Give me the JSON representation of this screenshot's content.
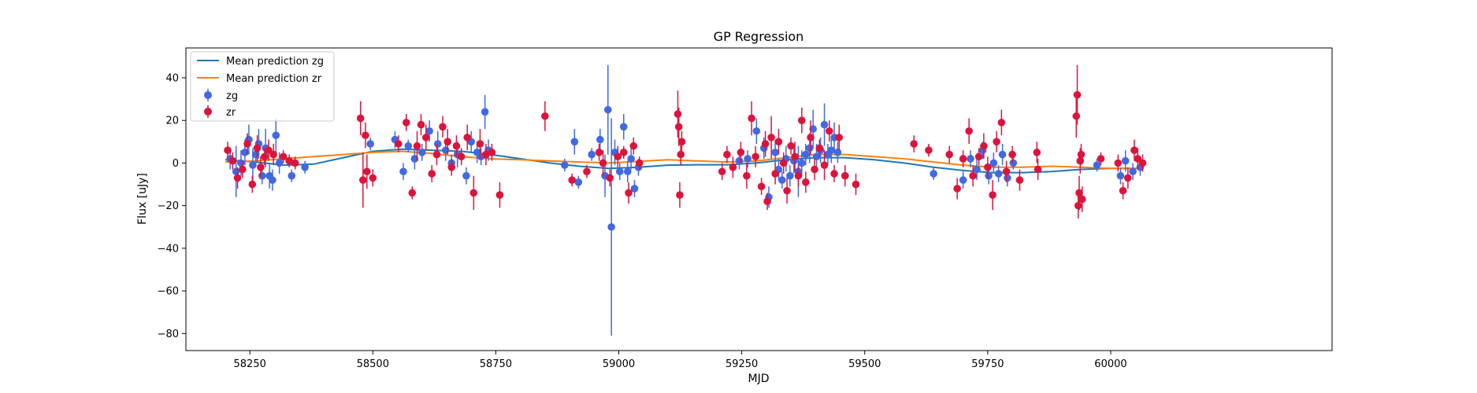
{
  "chart_data": {
    "type": "scatter",
    "title": "GP Regression",
    "xlabel": "MJD",
    "ylabel": "Flux [uJy]",
    "xlim": [
      58120,
      60450
    ],
    "ylim": [
      -88,
      54
    ],
    "xticks": [
      58250,
      58500,
      58750,
      59000,
      59250,
      59500,
      59750,
      60000
    ],
    "yticks": [
      -80,
      -60,
      -40,
      -20,
      0,
      20,
      40
    ],
    "grid": false,
    "legend_position": "top-left",
    "legend": [
      "Mean prediction zg",
      "Mean prediction zr",
      "zg",
      "zr"
    ],
    "colors": {
      "zg_line": "#1f77b4",
      "zr_line": "#ff7f0e",
      "zg_points": "#4169e1",
      "zr_points": "#dc143c"
    },
    "series": [
      {
        "name": "Mean prediction zg",
        "kind": "line",
        "x": [
          58200,
          58260,
          58320,
          58380,
          58440,
          58500,
          58560,
          58620,
          58680,
          58740,
          58800,
          58860,
          58920,
          58980,
          59040,
          59100,
          59160,
          59220,
          59280,
          59340,
          59400,
          59460,
          59520,
          59580,
          59640,
          59700,
          59760,
          59820,
          59880,
          59940,
          60000,
          60060
        ],
        "y": [
          1.5,
          0.5,
          -1.0,
          -0.5,
          2.5,
          5.5,
          6.5,
          6.0,
          5.5,
          4.0,
          2.0,
          0.0,
          -1.5,
          -2.5,
          -2.0,
          -1.0,
          -0.8,
          -0.8,
          0.0,
          1.5,
          2.5,
          2.5,
          1.5,
          0.0,
          -2.0,
          -3.5,
          -4.5,
          -4.5,
          -4.0,
          -3.0,
          -2.5,
          -2.5
        ]
      },
      {
        "name": "Mean prediction zr",
        "kind": "line",
        "x": [
          58200,
          58260,
          58320,
          58380,
          58440,
          58500,
          58560,
          58620,
          58680,
          58740,
          58800,
          58860,
          58920,
          58980,
          59040,
          59100,
          59160,
          59220,
          59280,
          59340,
          59400,
          59460,
          59520,
          59580,
          59640,
          59700,
          59760,
          59820,
          59880,
          59940,
          60000,
          60060
        ],
        "y": [
          0.5,
          1.0,
          2.0,
          3.0,
          4.0,
          5.0,
          5.5,
          4.5,
          3.0,
          2.0,
          1.5,
          1.0,
          0.5,
          0.0,
          0.8,
          1.5,
          1.0,
          0.5,
          1.0,
          2.5,
          4.0,
          4.0,
          3.0,
          2.0,
          0.5,
          -1.0,
          -2.0,
          -2.0,
          -1.5,
          -2.0,
          -2.5,
          -2.5
        ]
      },
      {
        "name": "zg",
        "kind": "errorbar",
        "x": [
          58210,
          58222,
          58232,
          58240,
          58248,
          58256,
          58262,
          58268,
          58275,
          58282,
          58290,
          58296,
          58303,
          58310,
          58335,
          58362,
          58495,
          58545,
          58562,
          58572,
          58585,
          58600,
          58615,
          58632,
          58648,
          58660,
          58672,
          58690,
          58700,
          58712,
          58720,
          58728,
          58735,
          58890,
          58910,
          58918,
          58945,
          58962,
          58972,
          58978,
          58985,
          58992,
          59002,
          59010,
          59018,
          59025,
          59032,
          59040,
          59245,
          59262,
          59280,
          59295,
          59305,
          59318,
          59325,
          59332,
          59340,
          59348,
          59356,
          59365,
          59372,
          59380,
          59388,
          59395,
          59402,
          59410,
          59418,
          59425,
          59432,
          59438,
          59445,
          59640,
          59700,
          59715,
          59728,
          59740,
          59752,
          59762,
          59772,
          59780,
          59790,
          59802,
          59972,
          60020,
          60030,
          60045,
          60060
        ],
        "y": [
          2,
          -4,
          0,
          5,
          11,
          -1,
          4,
          9,
          -6,
          7,
          -6,
          -8,
          13,
          0,
          -6,
          -2,
          9,
          11,
          -4,
          8,
          2,
          5,
          15,
          9,
          6,
          0,
          4,
          -6,
          10,
          5,
          3,
          24,
          6,
          -1,
          10,
          -9,
          4,
          11,
          -6,
          25,
          -30,
          5,
          -4,
          17,
          -4,
          2,
          -12,
          -2,
          1,
          2,
          15,
          7,
          -16,
          5,
          -3,
          -8,
          2,
          -6,
          1,
          -4,
          0,
          4,
          7,
          16,
          3,
          6,
          18,
          4,
          6,
          12,
          5,
          -5,
          -8,
          2,
          -3,
          6,
          -6,
          0,
          -5,
          4,
          -7,
          0,
          -1,
          -6,
          1,
          -4,
          -2
        ],
        "err": [
          5,
          12,
          6,
          6,
          7,
          8,
          5,
          7,
          4,
          9,
          6,
          5,
          8,
          5,
          3,
          3,
          3,
          4,
          4,
          3,
          5,
          4,
          5,
          6,
          5,
          4,
          6,
          4,
          5,
          5,
          4,
          8,
          5,
          3,
          6,
          3,
          3,
          5,
          10,
          21,
          51,
          6,
          4,
          6,
          5,
          5,
          4,
          4,
          4,
          4,
          6,
          5,
          5,
          6,
          5,
          4,
          6,
          5,
          6,
          12,
          6,
          5,
          7,
          9,
          6,
          6,
          10,
          5,
          6,
          7,
          5,
          3,
          4,
          4,
          5,
          4,
          4,
          5,
          4,
          5,
          4,
          3,
          3,
          4,
          5,
          4,
          4
        ]
      },
      {
        "name": "zr",
        "kind": "errorbar",
        "x": [
          58205,
          58215,
          58225,
          58235,
          58245,
          58255,
          58265,
          58272,
          58280,
          58288,
          58298,
          58318,
          58330,
          58342,
          58475,
          58480,
          58485,
          58488,
          58500,
          58552,
          58568,
          58580,
          58590,
          58598,
          58608,
          58620,
          58630,
          58642,
          58652,
          58660,
          58670,
          58680,
          58692,
          58705,
          58718,
          58730,
          58742,
          58758,
          58850,
          58905,
          58935,
          58960,
          58968,
          58982,
          58998,
          59010,
          59020,
          59030,
          59042,
          59120,
          59122,
          59124,
          59126,
          59128,
          59210,
          59220,
          59232,
          59248,
          59260,
          59270,
          59278,
          59290,
          59298,
          59302,
          59310,
          59318,
          59325,
          59335,
          59342,
          59350,
          59358,
          59365,
          59372,
          59380,
          59390,
          59398,
          59408,
          59418,
          59428,
          59438,
          59448,
          59460,
          59482,
          59600,
          59630,
          59672,
          59688,
          59700,
          59712,
          59720,
          59732,
          59742,
          59750,
          59760,
          59768,
          59778,
          59788,
          59800,
          59815,
          59850,
          59852,
          59930,
          59932,
          59934,
          59936,
          59938,
          59940,
          59942,
          59980,
          60015,
          60025,
          60035,
          60048,
          60055,
          60065
        ],
        "y": [
          6,
          1,
          -7,
          -3,
          9,
          -10,
          7,
          -2,
          3,
          6,
          4,
          3,
          1,
          0,
          21,
          -8,
          13,
          -4,
          -7,
          9,
          19,
          -14,
          8,
          18,
          12,
          -5,
          4,
          17,
          10,
          -2,
          8,
          3,
          12,
          -14,
          9,
          4,
          5,
          -15,
          22,
          -8,
          -4,
          5,
          0,
          -7,
          3,
          5,
          -14,
          8,
          0,
          23,
          17,
          -15,
          4,
          10,
          -4,
          4,
          -2,
          5,
          -6,
          21,
          3,
          -11,
          9,
          -18,
          12,
          -5,
          10,
          0,
          -13,
          8,
          3,
          -6,
          20,
          -9,
          12,
          -3,
          7,
          -1,
          15,
          -5,
          12,
          -6,
          -10,
          9,
          6,
          4,
          -12,
          2,
          15,
          -6,
          3,
          8,
          -2,
          -15,
          10,
          19,
          -4,
          4,
          -8,
          5,
          -3,
          22,
          32,
          -20,
          -14,
          1,
          4,
          -17,
          2,
          0,
          -13,
          -7,
          6,
          2,
          0
        ],
        "err": [
          4,
          4,
          5,
          4,
          5,
          4,
          6,
          5,
          4,
          5,
          5,
          3,
          3,
          3,
          8,
          13,
          6,
          8,
          4,
          4,
          4,
          3,
          7,
          5,
          6,
          4,
          5,
          5,
          6,
          4,
          5,
          4,
          6,
          8,
          7,
          5,
          4,
          6,
          7,
          3,
          3,
          4,
          6,
          4,
          5,
          3,
          5,
          4,
          3,
          11,
          9,
          6,
          5,
          5,
          4,
          4,
          5,
          5,
          6,
          8,
          5,
          4,
          6,
          4,
          10,
          5,
          6,
          5,
          6,
          4,
          7,
          5,
          6,
          5,
          8,
          5,
          4,
          7,
          5,
          4,
          6,
          5,
          5,
          4,
          3,
          4,
          5,
          4,
          6,
          5,
          4,
          6,
          5,
          7,
          5,
          6,
          5,
          4,
          5,
          5,
          5,
          10,
          14,
          6,
          8,
          6,
          5,
          6,
          3,
          4,
          4,
          5,
          5,
          5,
          4
        ]
      }
    ]
  }
}
